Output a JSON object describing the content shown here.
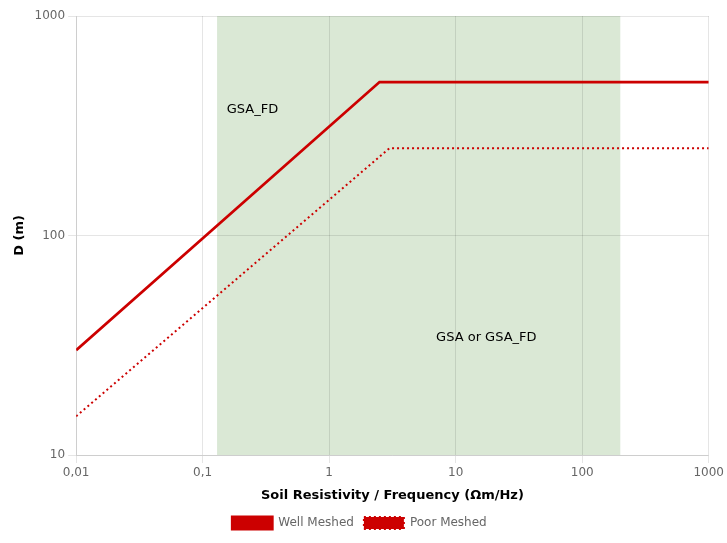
{
  "chart_data": {
    "type": "line",
    "xlabel": "Soil Resistivity / Frequency (Ωm/Hz)",
    "ylabel": "D (m)",
    "log": true,
    "xlim": [
      0.01,
      1000
    ],
    "ylim": [
      10,
      1000
    ],
    "xticks": [
      {
        "value": 0.01,
        "label": "0,01"
      },
      {
        "value": 0.1,
        "label": "0,1"
      },
      1,
      10,
      100,
      1000
    ],
    "yticks": [
      10,
      100,
      1000
    ],
    "grid": true,
    "legend": "bottom",
    "series": [
      {
        "name": "Well Meshed",
        "color": "#cc0000",
        "line_style": "solid",
        "marker": "none",
        "x": [
          0.01,
          2.5,
          1000
        ],
        "values": [
          30,
          500,
          500
        ]
      },
      {
        "name": "Poor Meshed",
        "color": "#cc0000",
        "line_style": "dotted",
        "marker": "none",
        "x": [
          0.01,
          3.0,
          1000
        ],
        "values": [
          15,
          250,
          250
        ]
      }
    ],
    "shaded_span": {
      "xmin": 0.13,
      "xmax": 200,
      "color": "#dae8d5"
    },
    "annotations": [
      {
        "text": "GSA_FD",
        "x": 0.155,
        "y": 360
      },
      {
        "text": "GSA or GSA_FD",
        "x": 7.0,
        "y": 33
      }
    ]
  }
}
